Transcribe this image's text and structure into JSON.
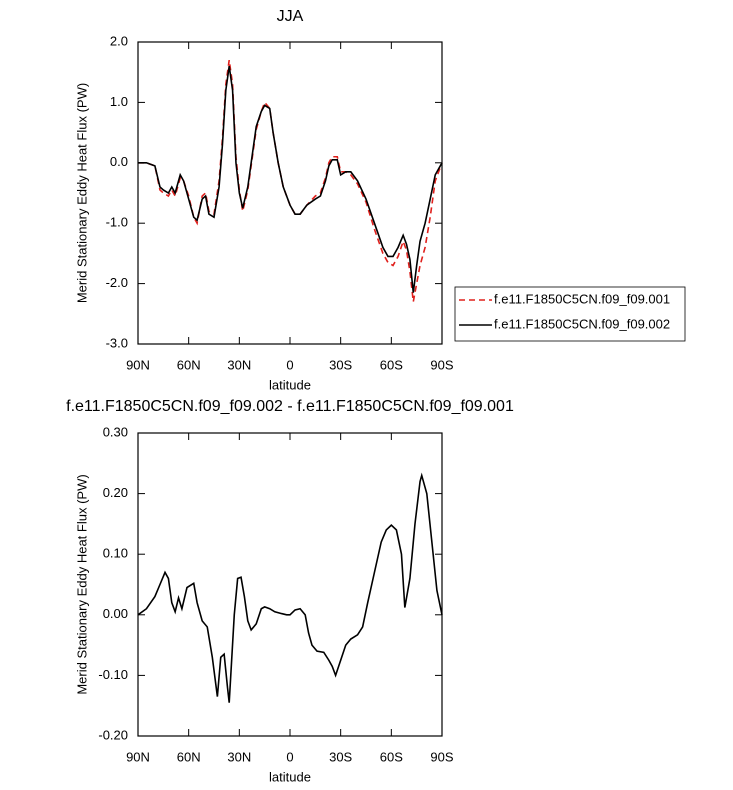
{
  "chart_data": [
    {
      "type": "line",
      "title": "JJA",
      "xlabel": "latitude",
      "ylabel": "Merid Stationary Eddy Heat Flux (PW)",
      "x": [
        90,
        85,
        80,
        77,
        75,
        72,
        70,
        68,
        65,
        63,
        60,
        57,
        55,
        52,
        50,
        48,
        45,
        42,
        40,
        38,
        36,
        34,
        32,
        30,
        28,
        25,
        22,
        20,
        17,
        15,
        12,
        10,
        7,
        4,
        0,
        -3,
        -6,
        -10,
        -15,
        -18,
        -21,
        -23,
        -25,
        -28,
        -30,
        -33,
        -36,
        -40,
        -45,
        -50,
        -55,
        -58,
        -61,
        -64,
        -67,
        -69,
        -71,
        -73,
        -75,
        -77,
        -80,
        -83,
        -86,
        -90
      ],
      "series": [
        {
          "name": "f.e11.F1850C5CN.f09_f09.001",
          "color": "#e0201c",
          "dashed": true,
          "values": [
            0,
            0,
            -0.05,
            -0.45,
            -0.5,
            -0.55,
            -0.45,
            -0.55,
            -0.25,
            -0.3,
            -0.55,
            -0.9,
            -1.0,
            -0.55,
            -0.5,
            -0.8,
            -0.85,
            -0.3,
            0.4,
            1.3,
            1.7,
            1.3,
            0.1,
            -0.45,
            -0.8,
            -0.45,
            0.15,
            0.55,
            0.85,
            1.0,
            0.9,
            0.5,
            0.0,
            -0.4,
            -0.7,
            -0.85,
            -0.85,
            -0.7,
            -0.55,
            -0.5,
            -0.25,
            0.0,
            0.1,
            0.1,
            -0.15,
            -0.15,
            -0.2,
            -0.35,
            -0.65,
            -1.1,
            -1.5,
            -1.65,
            -1.7,
            -1.55,
            -1.3,
            -1.45,
            -1.8,
            -2.3,
            -2.0,
            -1.7,
            -1.4,
            -0.9,
            -0.3,
            0
          ]
        },
        {
          "name": "f.e11.F1850C5CN.f09_f09.002",
          "color": "#000000",
          "dashed": false,
          "values": [
            0,
            0,
            -0.05,
            -0.4,
            -0.45,
            -0.5,
            -0.4,
            -0.5,
            -0.2,
            -0.3,
            -0.6,
            -0.9,
            -0.95,
            -0.6,
            -0.55,
            -0.85,
            -0.9,
            -0.4,
            0.3,
            1.2,
            1.6,
            1.2,
            0.0,
            -0.5,
            -0.75,
            -0.4,
            0.2,
            0.6,
            0.85,
            0.95,
            0.9,
            0.5,
            0.0,
            -0.4,
            -0.7,
            -0.85,
            -0.85,
            -0.7,
            -0.6,
            -0.55,
            -0.3,
            -0.05,
            0.05,
            0.05,
            -0.2,
            -0.15,
            -0.15,
            -0.3,
            -0.6,
            -1.0,
            -1.4,
            -1.55,
            -1.55,
            -1.4,
            -1.2,
            -1.35,
            -1.6,
            -2.15,
            -1.7,
            -1.3,
            -1.0,
            -0.6,
            -0.2,
            0
          ]
        }
      ],
      "xlim": [
        90,
        -90
      ],
      "xticks": [
        {
          "value": 90,
          "label": "90N"
        },
        {
          "value": 60,
          "label": "60N"
        },
        {
          "value": 30,
          "label": "30N"
        },
        0,
        {
          "value": -30,
          "label": "30S"
        },
        {
          "value": -60,
          "label": "60S"
        },
        {
          "value": -90,
          "label": "90S"
        }
      ],
      "ylim": [
        -3,
        2
      ],
      "yticks": [
        {
          "value": 2,
          "label": "2.0"
        },
        {
          "value": 1,
          "label": "1.0"
        },
        {
          "value": 0,
          "label": "0.0"
        },
        {
          "value": -1,
          "label": "-1.0"
        },
        {
          "value": -2,
          "label": "-2.0"
        },
        {
          "value": -3,
          "label": "-3.0"
        }
      ],
      "legend": "outside-right"
    },
    {
      "type": "line",
      "title": "f.e11.F1850C5CN.f09_f09.002 - f.e11.F1850C5CN.f09_f09.001",
      "xlabel": "latitude",
      "ylabel": "Merid Stationary Eddy Heat Flux (PW)",
      "x": [
        90,
        85,
        80,
        77,
        74,
        72,
        70,
        68,
        66,
        64,
        61,
        57,
        55,
        52,
        49,
        46,
        43,
        41,
        39,
        37,
        36,
        33,
        31,
        29,
        27,
        25,
        23,
        20,
        17,
        15,
        12,
        9,
        5,
        2,
        0,
        -3,
        -6,
        -9,
        -11,
        -13,
        -16,
        -20,
        -23,
        -25,
        -27,
        -30,
        -33,
        -36,
        -40,
        -43,
        -46,
        -50,
        -54,
        -57,
        -60,
        -63,
        -66,
        -68,
        -71,
        -74,
        -77,
        -78,
        -81,
        -84,
        -87,
        -90
      ],
      "values": [
        0,
        0.01,
        0.03,
        0.05,
        0.07,
        0.06,
        0.02,
        0.005,
        0.028,
        0.01,
        0.045,
        0.052,
        0.02,
        -0.01,
        -0.02,
        -0.07,
        -0.135,
        -0.07,
        -0.065,
        -0.12,
        -0.145,
        0.0,
        0.06,
        0.062,
        0.03,
        -0.01,
        -0.025,
        -0.015,
        0.01,
        0.013,
        0.01,
        0.005,
        0.002,
        0.0,
        0.0,
        0.008,
        0.01,
        0.0,
        -0.03,
        -0.05,
        -0.06,
        -0.062,
        -0.075,
        -0.085,
        -0.1,
        -0.075,
        -0.05,
        -0.04,
        -0.033,
        -0.02,
        0.02,
        0.07,
        0.12,
        0.14,
        0.148,
        0.14,
        0.1,
        0.012,
        0.06,
        0.15,
        0.22,
        0.23,
        0.2,
        0.12,
        0.04,
        0
      ],
      "color": "#000000",
      "xlim": [
        90,
        -90
      ],
      "xticks": [
        {
          "value": 90,
          "label": "90N"
        },
        {
          "value": 60,
          "label": "60N"
        },
        {
          "value": 30,
          "label": "30N"
        },
        0,
        {
          "value": -30,
          "label": "30S"
        },
        {
          "value": -60,
          "label": "60S"
        },
        {
          "value": -90,
          "label": "90S"
        }
      ],
      "ylim": [
        -0.2,
        0.3
      ],
      "yticks": [
        {
          "value": 0.3,
          "label": "0.30"
        },
        {
          "value": 0.2,
          "label": "0.20"
        },
        {
          "value": 0.1,
          "label": "0.10"
        },
        {
          "value": 0,
          "label": "0.00"
        },
        {
          "value": -0.1,
          "label": "-0.10"
        },
        {
          "value": -0.2,
          "label": "-0.20"
        }
      ]
    }
  ]
}
